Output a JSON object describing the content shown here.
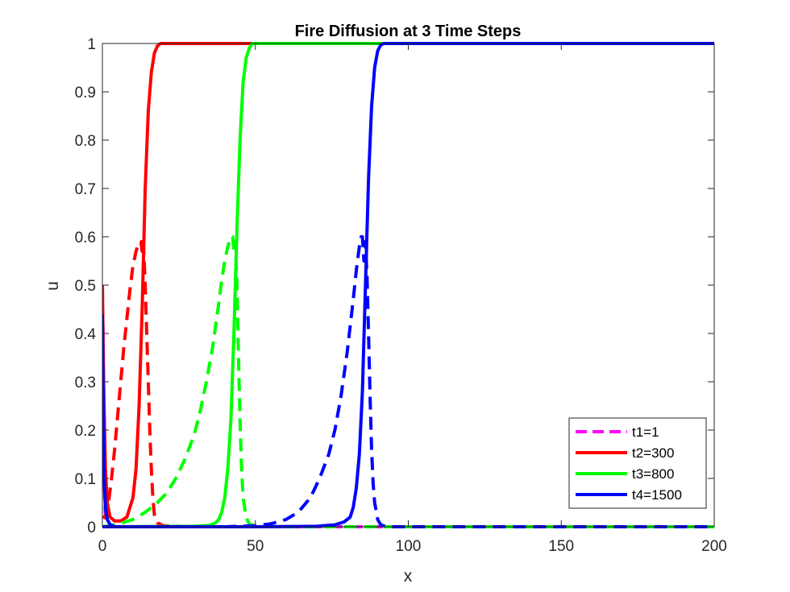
{
  "chart_data": {
    "type": "line",
    "title": "Fire Diffusion at 3 Time Steps",
    "xlabel": "x",
    "ylabel": "u",
    "xlim": [
      0,
      200
    ],
    "ylim": [
      0,
      1
    ],
    "xticks": [
      "0",
      "50",
      "100",
      "150",
      "200"
    ],
    "yticks": [
      "0",
      "0.1",
      "0.2",
      "0.3",
      "0.4",
      "0.5",
      "0.6",
      "0.7",
      "0.8",
      "0.9",
      "1"
    ],
    "grid": false,
    "legend_position": "bottom-right",
    "legend": [
      {
        "label": "t1=1",
        "color": "#ff00ff",
        "style": "dashed"
      },
      {
        "label": "t2=300",
        "color": "#ff0000",
        "style": "solid"
      },
      {
        "label": "t3=800",
        "color": "#00ff00",
        "style": "solid"
      },
      {
        "label": "t4=1500",
        "color": "#0000ff",
        "style": "solid"
      }
    ],
    "series": [
      {
        "color": "#ff00ff",
        "style": "dashed",
        "x": [
          0,
          0.3,
          0.6,
          1,
          2,
          50,
          100,
          150,
          200
        ],
        "y": [
          0.5,
          0.35,
          0.1,
          0.02,
          0,
          0,
          0,
          0,
          0
        ]
      },
      {
        "color": "#ff0000",
        "style": "solid",
        "x": [
          0,
          0.4,
          1,
          1.6,
          2.5,
          4,
          6,
          8,
          10,
          11,
          12,
          13,
          14,
          15,
          16,
          17,
          18,
          19,
          20,
          22,
          25,
          50,
          100,
          150,
          200
        ],
        "y": [
          0.5,
          0.3,
          0.12,
          0.05,
          0.02,
          0.012,
          0.012,
          0.02,
          0.06,
          0.12,
          0.25,
          0.45,
          0.7,
          0.86,
          0.94,
          0.98,
          0.995,
          1,
          1,
          1,
          1,
          1,
          1,
          1,
          1
        ]
      },
      {
        "color": "#ff0000",
        "style": "dashed",
        "x": [
          0,
          1,
          2,
          3,
          4,
          5,
          6,
          7,
          8,
          9,
          10,
          11,
          12,
          12.6,
          13,
          13.4,
          14,
          14.5,
          15,
          15.5,
          16,
          16.5,
          17,
          18,
          20,
          30,
          40,
          50
        ],
        "y": [
          0.02,
          0.02,
          0.05,
          0.1,
          0.16,
          0.23,
          0.3,
          0.37,
          0.43,
          0.49,
          0.54,
          0.57,
          0.59,
          0.59,
          0.57,
          0.59,
          0.5,
          0.4,
          0.3,
          0.2,
          0.12,
          0.06,
          0.025,
          0.008,
          0.002,
          0,
          0,
          0
        ]
      },
      {
        "color": "#00ff00",
        "style": "solid",
        "x": [
          0,
          30,
          35,
          37,
          38,
          39,
          40,
          41,
          42,
          43,
          44,
          45,
          46,
          47,
          48,
          49,
          50,
          55,
          100,
          150,
          200
        ],
        "y": [
          0,
          0.001,
          0.003,
          0.008,
          0.015,
          0.03,
          0.06,
          0.12,
          0.22,
          0.4,
          0.62,
          0.8,
          0.92,
          0.97,
          0.99,
          1,
          1,
          1,
          1,
          1,
          1
        ]
      },
      {
        "color": "#00ff00",
        "style": "dashed",
        "x": [
          0,
          5,
          10,
          14,
          18,
          21,
          24,
          27,
          30,
          32,
          34,
          36,
          38,
          39,
          40,
          41,
          42,
          42.6,
          43,
          43.5,
          44,
          44.5,
          45,
          45.5,
          46,
          47,
          48,
          50,
          55,
          100,
          150,
          200
        ],
        "y": [
          0,
          0.005,
          0.015,
          0.03,
          0.05,
          0.07,
          0.1,
          0.14,
          0.19,
          0.24,
          0.3,
          0.37,
          0.46,
          0.51,
          0.55,
          0.58,
          0.6,
          0.6,
          0.57,
          0.59,
          0.5,
          0.35,
          0.22,
          0.12,
          0.06,
          0.02,
          0.006,
          0.001,
          0,
          0,
          0,
          0
        ]
      },
      {
        "color": "#0000ff",
        "style": "solid",
        "x": [
          0,
          0.3,
          0.6,
          1,
          1.6,
          2.5,
          4,
          50,
          70,
          76,
          79,
          81,
          82,
          83,
          84,
          85,
          86,
          87,
          88,
          89,
          90,
          91,
          92,
          95,
          100,
          150,
          200
        ],
        "y": [
          0.44,
          0.25,
          0.1,
          0.04,
          0.015,
          0.005,
          0,
          0,
          0.001,
          0.004,
          0.01,
          0.02,
          0.04,
          0.08,
          0.15,
          0.28,
          0.5,
          0.72,
          0.87,
          0.95,
          0.985,
          0.997,
          1,
          1,
          1,
          1,
          1
        ]
      },
      {
        "color": "#0000ff",
        "style": "dashed",
        "x": [
          0,
          40,
          50,
          55,
          60,
          64,
          68,
          71,
          74,
          76,
          78,
          80,
          82,
          83,
          84,
          84.6,
          85,
          85.5,
          86,
          86.5,
          87,
          87.5,
          88,
          88.5,
          89,
          90,
          91,
          93,
          100,
          150,
          200
        ],
        "y": [
          0,
          0,
          0.002,
          0.006,
          0.015,
          0.03,
          0.06,
          0.1,
          0.15,
          0.2,
          0.27,
          0.36,
          0.47,
          0.53,
          0.58,
          0.6,
          0.6,
          0.55,
          0.59,
          0.52,
          0.4,
          0.27,
          0.16,
          0.09,
          0.05,
          0.015,
          0.004,
          0,
          0,
          0,
          0
        ]
      }
    ]
  }
}
